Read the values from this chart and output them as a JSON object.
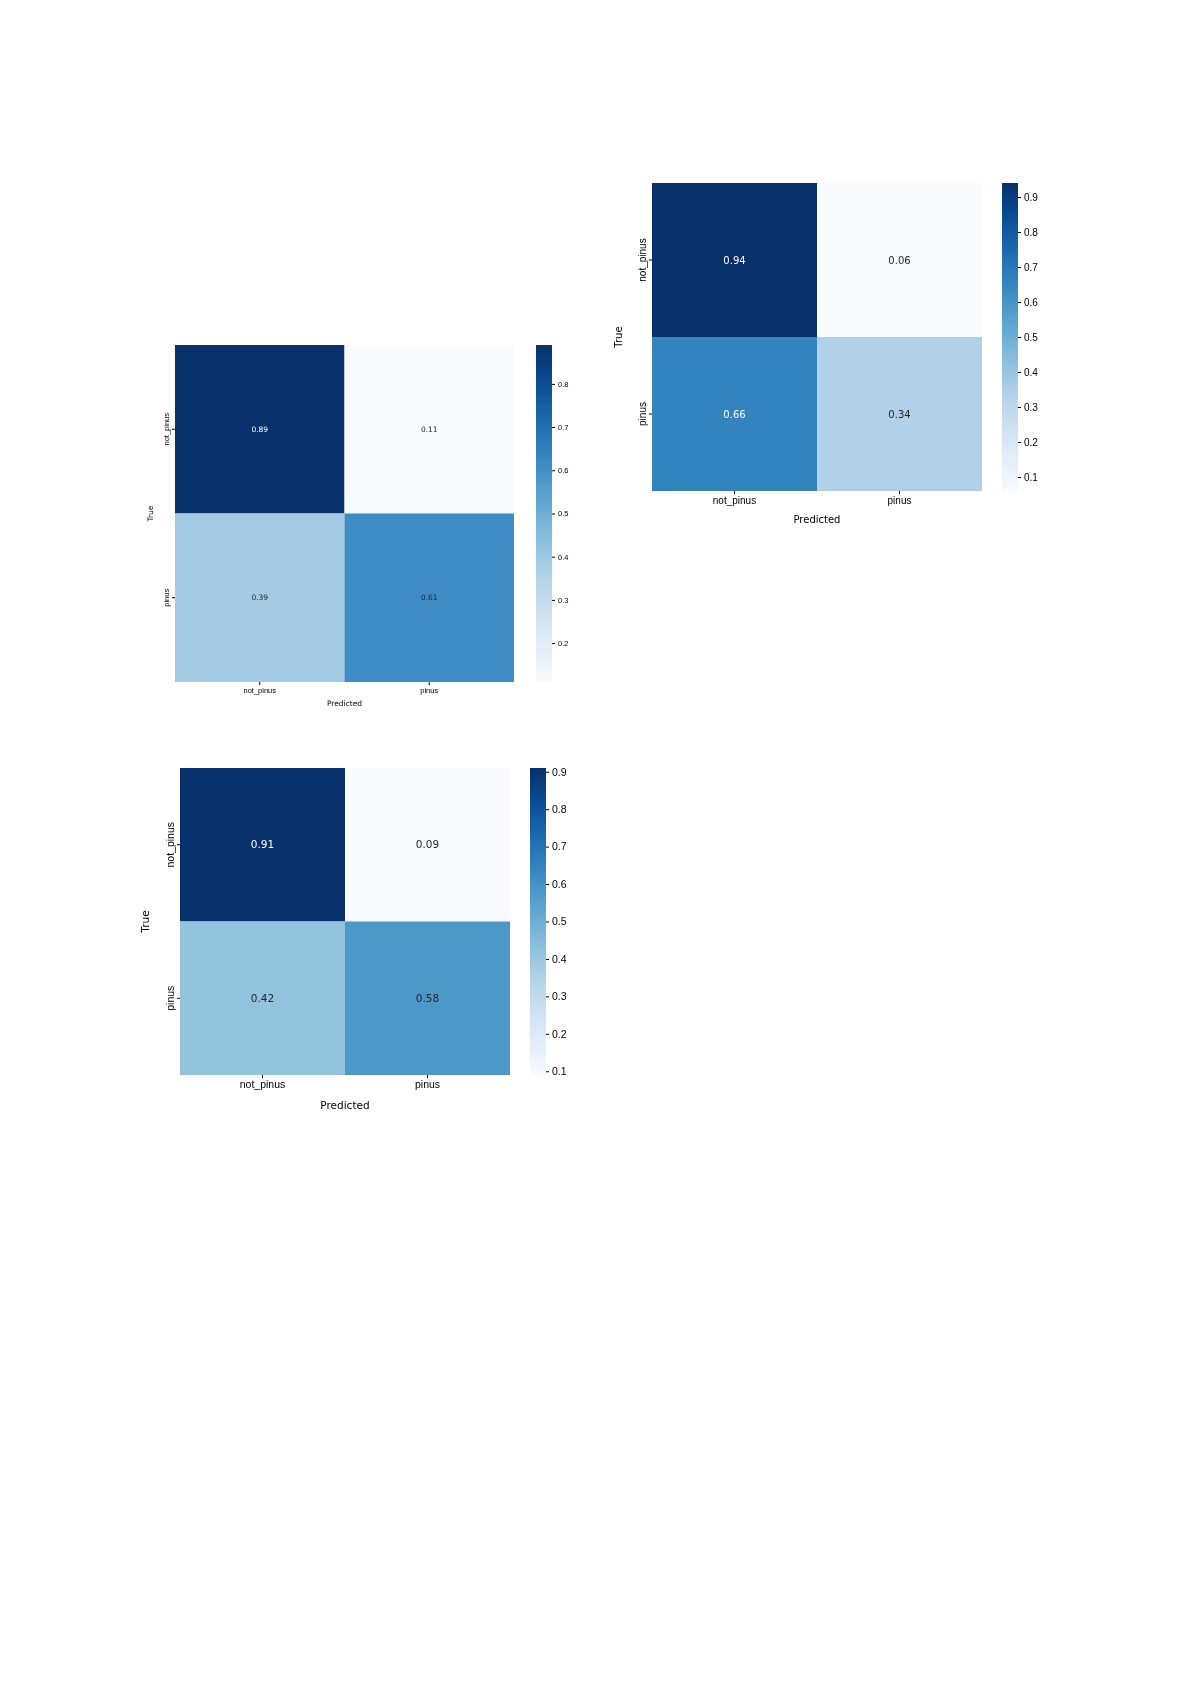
{
  "chart_data": [
    {
      "type": "heatmap",
      "xlabel": "Predicted",
      "ylabel": "True",
      "categories": [
        "not_pinus",
        "pinus"
      ],
      "y_categories": [
        "not_pinus",
        "pinus"
      ],
      "cells": [
        [
          0.89,
          0.11
        ],
        [
          0.39,
          0.61
        ]
      ],
      "clim": [
        0.11,
        0.89
      ],
      "cticks": [
        0.2,
        0.3,
        0.4,
        0.5,
        0.6,
        0.7,
        0.8
      ],
      "data_labels": true
    },
    {
      "type": "heatmap",
      "xlabel": "Predicted",
      "ylabel": "True",
      "categories": [
        "not_pinus",
        "pinus"
      ],
      "y_categories": [
        "not_pinus",
        "pinus"
      ],
      "cells": [
        [
          0.94,
          0.06
        ],
        [
          0.66,
          0.34
        ]
      ],
      "clim": [
        0.06,
        0.94
      ],
      "cticks": [
        0.1,
        0.2,
        0.3,
        0.4,
        0.5,
        0.6,
        0.7,
        0.8,
        0.9
      ],
      "data_labels": true
    },
    {
      "type": "heatmap",
      "xlabel": "Predicted",
      "ylabel": "True",
      "categories": [
        "not_pinus",
        "pinus"
      ],
      "y_categories": [
        "not_pinus",
        "pinus"
      ],
      "cells": [
        [
          0.91,
          0.09
        ],
        [
          0.42,
          0.58
        ]
      ],
      "clim": [
        0.09,
        0.91
      ],
      "cticks": [
        0.1,
        0.2,
        0.3,
        0.4,
        0.5,
        0.6,
        0.7,
        0.8,
        0.9
      ],
      "data_labels": true
    }
  ]
}
